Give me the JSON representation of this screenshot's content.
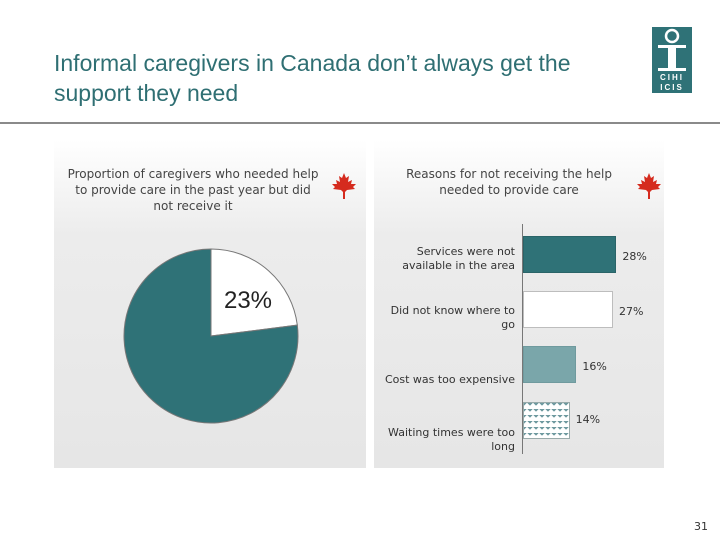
{
  "slide": {
    "title": "Informal caregivers in Canada don’t always get the support they need",
    "page_number": "31"
  },
  "logo": {
    "text_top": "CIHI",
    "text_bottom": "ICIS",
    "color": "#2f7277"
  },
  "colors": {
    "teal": "#2f7277",
    "light_teal": "#7aa6aa",
    "maple_red": "#d52b1e"
  },
  "chart_data": [
    {
      "type": "pie",
      "title": "Proportion of caregivers who needed help to provide care in the past year but did not receive it",
      "slices": [
        {
          "name": "",
          "value": 23,
          "label": "23%",
          "color": "#ffffff"
        },
        {
          "name": "",
          "value": 77,
          "label": "",
          "color": "#2f7277"
        }
      ]
    },
    {
      "type": "bar",
      "orientation": "horizontal",
      "title": "Reasons for not receiving the help needed to provide care",
      "categories": [
        "Services were not available in the area",
        "Did not know where to go",
        "Cost was too expensive",
        "Waiting times were too long"
      ],
      "values": [
        28,
        27,
        16,
        14
      ],
      "value_labels": [
        "28%",
        "27%",
        "16%",
        "14%"
      ],
      "xlim": [
        0,
        30
      ],
      "fills": [
        "teal",
        "white",
        "light-teal",
        "pattern"
      ]
    }
  ]
}
